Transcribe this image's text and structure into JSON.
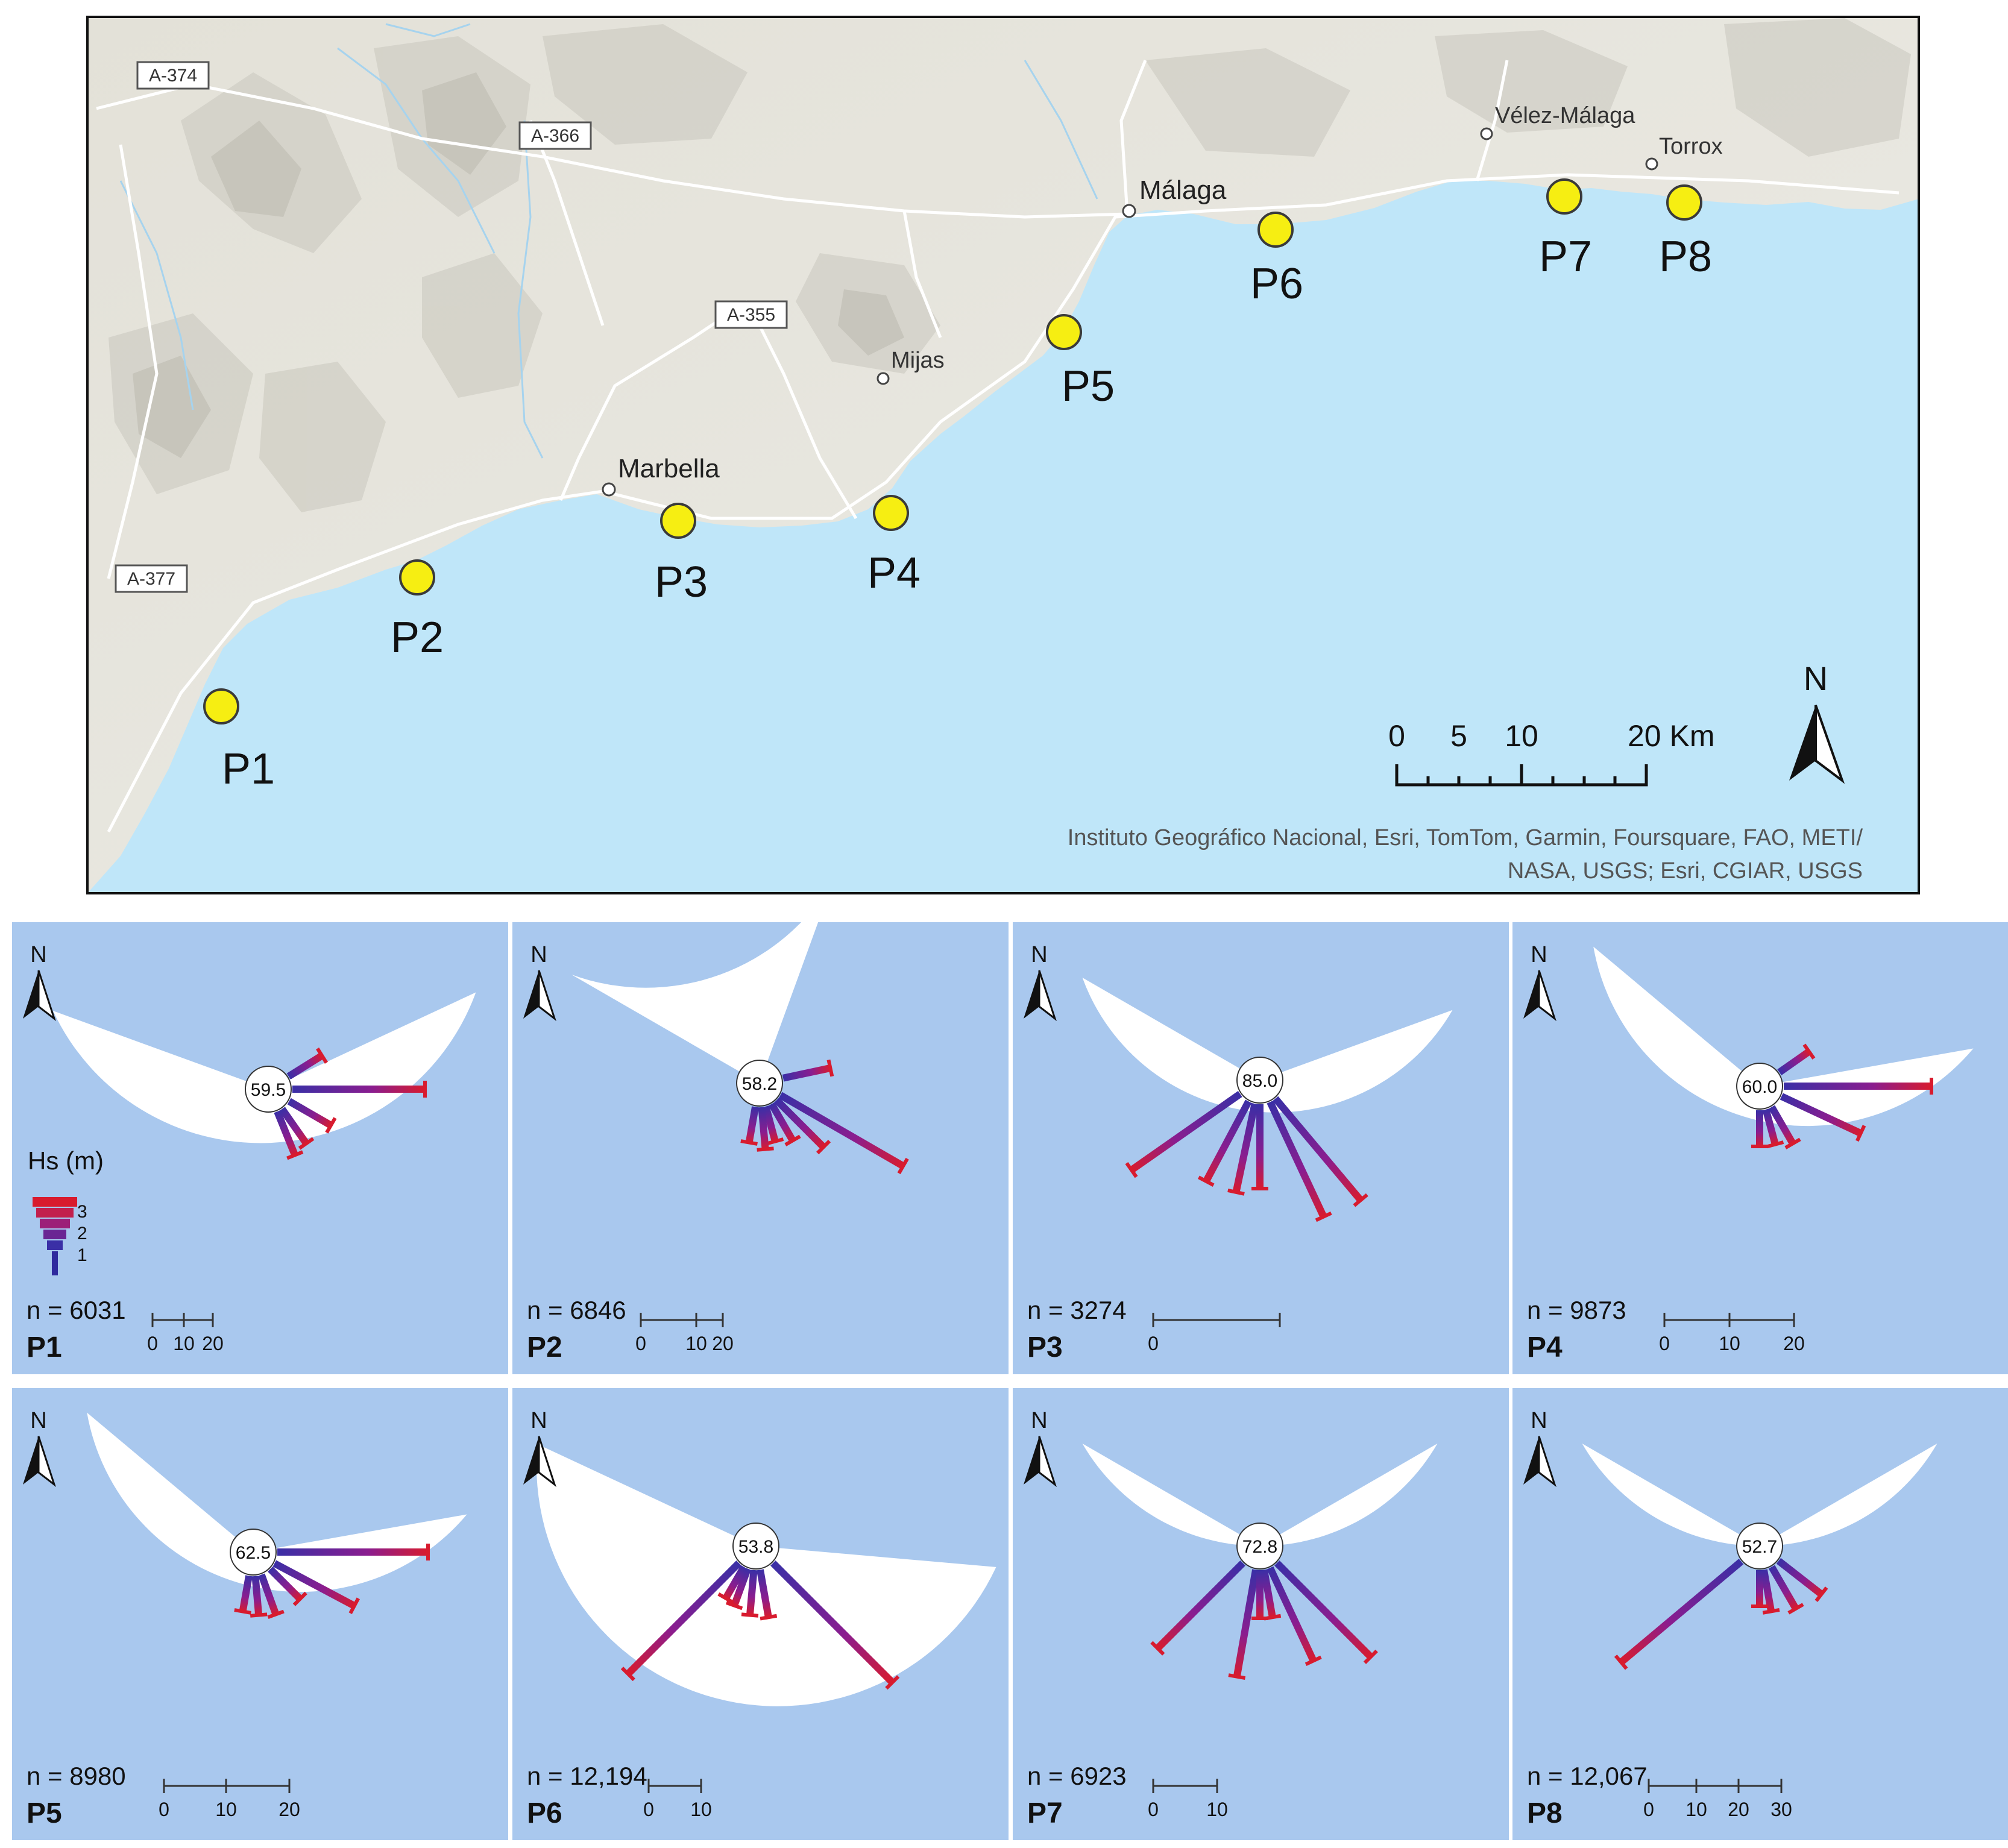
{
  "map": {
    "roads": [
      "A-374",
      "A-366",
      "A-355",
      "A-377"
    ],
    "towns": [
      "Vélez-Málaga",
      "Torrox",
      "Málaga",
      "Mijas",
      "Marbella"
    ],
    "points": [
      "P1",
      "P2",
      "P3",
      "P4",
      "P5",
      "P6",
      "P7",
      "P8"
    ],
    "scale": {
      "ticks": [
        "0",
        "5",
        "10",
        "20 Km"
      ]
    },
    "north": "N",
    "attribution": [
      "Instituto Geográfico Nacional, Esri, TomTom, Garmin, Foursquare, FAO, METI/",
      "NASA, USGS; Esri, CGIAR, USGS"
    ],
    "colors": {
      "sea": "#bfe6f9",
      "land": "#e8e6df",
      "point_fill": "#f6ee12",
      "point_stroke": "#3a3a3a"
    }
  },
  "legend": {
    "title": "Hs (m)",
    "levels": [
      "3",
      "2",
      "1"
    ]
  },
  "panels": [
    {
      "id": "P1",
      "center": "59.5",
      "n": "n = 6031",
      "scale": [
        "0",
        "10",
        "20"
      ]
    },
    {
      "id": "P2",
      "center": "58.2",
      "n": "n = 6846",
      "scale": [
        "0",
        "10",
        "20"
      ]
    },
    {
      "id": "P3",
      "center": "85.0",
      "n": "n = 3274",
      "scale": [
        "0"
      ]
    },
    {
      "id": "P4",
      "center": "60.0",
      "n": "n = 9873",
      "scale": [
        "0",
        "10",
        "20"
      ]
    },
    {
      "id": "P5",
      "center": "62.5",
      "n": "n = 8980",
      "scale": [
        "0",
        "10",
        "20"
      ]
    },
    {
      "id": "P6",
      "center": "53.8",
      "n": "n = 12,194",
      "scale": [
        "0",
        "10"
      ]
    },
    {
      "id": "P7",
      "center": "72.8",
      "n": "n = 6923",
      "scale": [
        "0",
        "10"
      ]
    },
    {
      "id": "P8",
      "center": "52.7",
      "n": "n = 12,067",
      "scale": [
        "0",
        "10",
        "20",
        "30"
      ]
    }
  ],
  "colors": {
    "panel_bg": "#a9c8ee",
    "sector": "#ffffff",
    "bar_low": "#3a2fa6",
    "bar_high": "#d81b2e"
  }
}
